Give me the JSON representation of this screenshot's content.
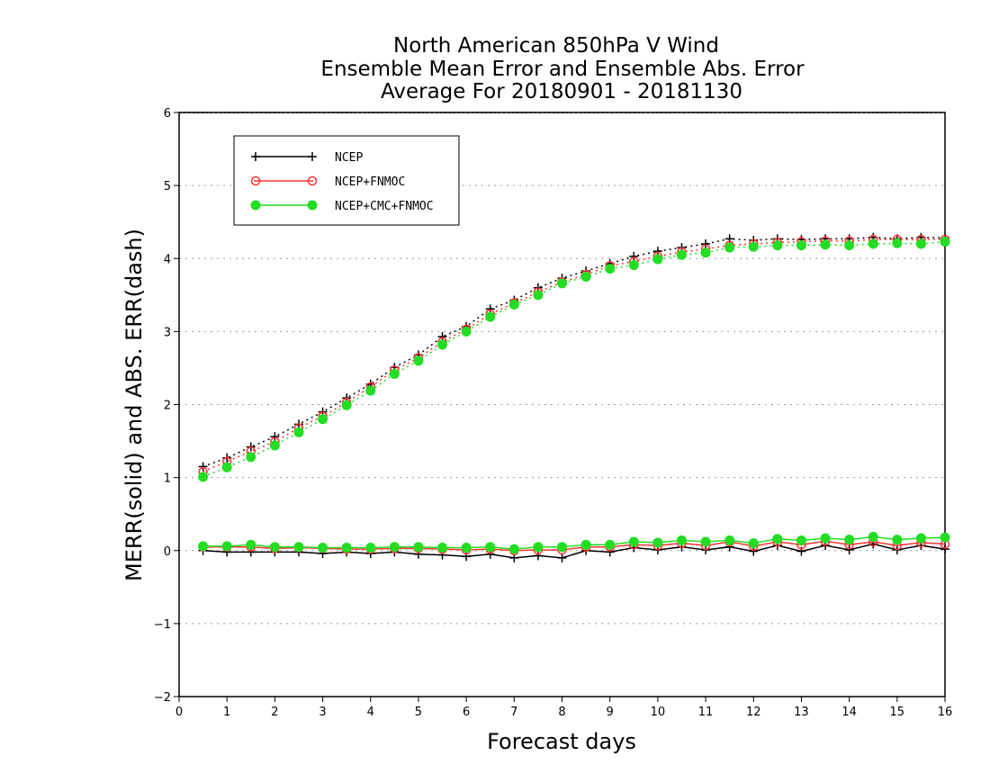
{
  "chart_data": {
    "type": "line",
    "title_lines": [
      "North American 850hPa V Wind",
      "Ensemble Mean Error and Ensemble Abs. Error",
      "Average For 20180901 - 20181130"
    ],
    "xlabel": "Forecast days",
    "ylabel": "MERR(solid) and ABS. ERR(dash)",
    "xlim": [
      0,
      16
    ],
    "ylim": [
      -2,
      6
    ],
    "x_ticks": [
      "0",
      "1",
      "2",
      "3",
      "4",
      "5",
      "6",
      "7",
      "8",
      "9",
      "10",
      "11",
      "12",
      "13",
      "14",
      "15",
      "16"
    ],
    "y_ticks": [
      "−2",
      "−1",
      "0",
      "1",
      "2",
      "3",
      "4",
      "5",
      "6"
    ],
    "y_tick_values": [
      -2,
      -1,
      0,
      1,
      2,
      3,
      4,
      5,
      6
    ],
    "grid": "horizontal dotted",
    "legend_position": "top-left",
    "x": [
      0.5,
      1,
      1.5,
      2,
      2.5,
      3,
      3.5,
      4,
      4.5,
      5,
      5.5,
      6,
      6.5,
      7,
      7.5,
      8,
      8.5,
      9,
      9.5,
      10,
      10.5,
      11,
      11.5,
      12,
      12.5,
      13,
      13.5,
      14,
      14.5,
      15,
      15.5,
      16
    ],
    "series": [
      {
        "name": "NCEP",
        "color": "#000000",
        "marker": "plus",
        "merr": [
          0.0,
          -0.02,
          -0.02,
          -0.02,
          -0.02,
          -0.04,
          -0.02,
          -0.04,
          -0.02,
          -0.05,
          -0.06,
          -0.08,
          -0.05,
          -0.1,
          -0.07,
          -0.1,
          0.0,
          -0.02,
          0.04,
          0.01,
          0.05,
          0.01,
          0.05,
          -0.01,
          0.07,
          -0.01,
          0.07,
          0.01,
          0.09,
          0.01,
          0.07,
          0.02
        ],
        "abs_err": [
          1.15,
          1.27,
          1.42,
          1.56,
          1.73,
          1.9,
          2.09,
          2.28,
          2.51,
          2.68,
          2.93,
          3.07,
          3.31,
          3.43,
          3.6,
          3.73,
          3.83,
          3.93,
          4.03,
          4.1,
          4.15,
          4.2,
          4.27,
          4.25,
          4.27,
          4.26,
          4.27,
          4.27,
          4.29,
          4.27,
          4.29,
          4.28
        ]
      },
      {
        "name": "NCEP+FNMOC",
        "color": "#ff3333",
        "marker": "open-circle",
        "merr": [
          0.05,
          0.05,
          0.05,
          0.03,
          0.04,
          0.03,
          0.02,
          0.02,
          0.03,
          0.03,
          0.02,
          0.01,
          0.02,
          0.0,
          0.01,
          0.01,
          0.05,
          0.05,
          0.08,
          0.07,
          0.1,
          0.07,
          0.12,
          0.06,
          0.12,
          0.08,
          0.13,
          0.08,
          0.12,
          0.07,
          0.11,
          0.09
        ],
        "abs_err": [
          1.08,
          1.22,
          1.36,
          1.49,
          1.68,
          1.84,
          2.03,
          2.24,
          2.47,
          2.64,
          2.86,
          3.03,
          3.24,
          3.39,
          3.54,
          3.68,
          3.78,
          3.9,
          3.96,
          4.03,
          4.09,
          4.13,
          4.18,
          4.2,
          4.22,
          4.23,
          4.24,
          4.24,
          4.26,
          4.26,
          4.26,
          4.26
        ]
      },
      {
        "name": "NCEP+CMC+FNMOC",
        "color": "#22dd22",
        "marker": "filled-circle",
        "merr": [
          0.06,
          0.06,
          0.08,
          0.05,
          0.05,
          0.04,
          0.04,
          0.04,
          0.05,
          0.05,
          0.04,
          0.04,
          0.05,
          0.02,
          0.05,
          0.05,
          0.08,
          0.08,
          0.12,
          0.11,
          0.14,
          0.12,
          0.14,
          0.1,
          0.16,
          0.14,
          0.17,
          0.15,
          0.19,
          0.15,
          0.17,
          0.18
        ],
        "abs_err": [
          1.01,
          1.14,
          1.28,
          1.44,
          1.62,
          1.8,
          1.99,
          2.19,
          2.42,
          2.6,
          2.82,
          3.0,
          3.2,
          3.37,
          3.5,
          3.66,
          3.75,
          3.86,
          3.91,
          3.99,
          4.05,
          4.08,
          4.15,
          4.16,
          4.18,
          4.18,
          4.19,
          4.18,
          4.2,
          4.21,
          4.2,
          4.23
        ]
      }
    ]
  }
}
